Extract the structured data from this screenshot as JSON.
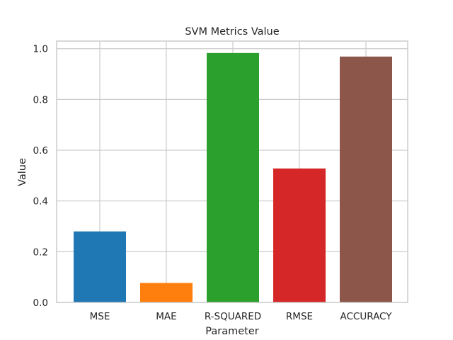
{
  "chart_data": {
    "type": "bar",
    "title": "SVM Metrics Value",
    "xlabel": "Parameter",
    "ylabel": "Value",
    "categories": [
      "MSE",
      "MAE",
      "R-SQUARED",
      "RMSE",
      "ACCURACY"
    ],
    "values": [
      0.28,
      0.077,
      0.983,
      0.528,
      0.969
    ],
    "colors": [
      "#1f77b4",
      "#ff7f0e",
      "#2ca02c",
      "#d62728",
      "#8c564b"
    ],
    "ylim": [
      0,
      1.03
    ],
    "yticks": [
      "0.0",
      "0.2",
      "0.4",
      "0.6",
      "0.8",
      "1.0"
    ],
    "grid": true,
    "legend": "none"
  }
}
